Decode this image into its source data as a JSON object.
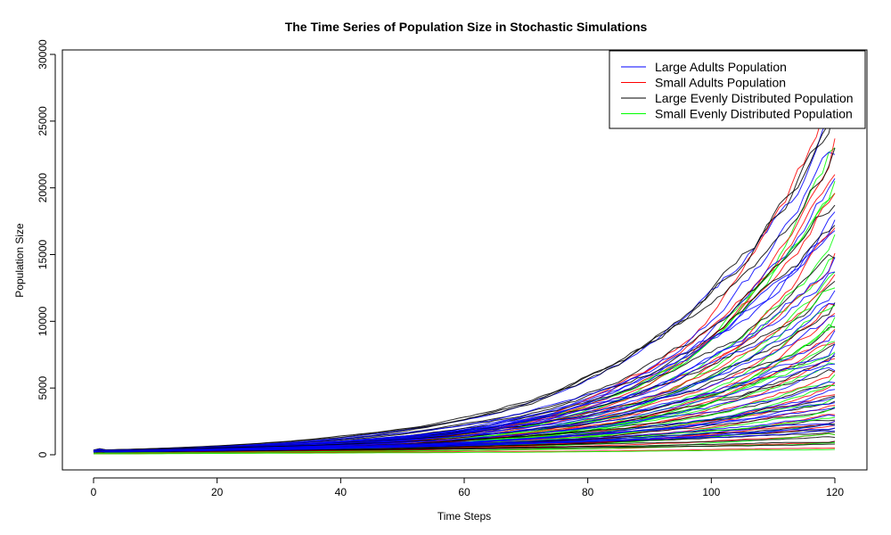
{
  "chart_data": {
    "type": "line",
    "title": "The Time Series of Population Size in Stochastic Simulations",
    "xlabel": "Time Steps",
    "ylabel": "Population Size",
    "xlim": [
      0,
      120
    ],
    "ylim": [
      0,
      30000
    ],
    "x_ticks": [
      0,
      20,
      40,
      60,
      80,
      100,
      120
    ],
    "y_ticks": [
      0,
      5000,
      10000,
      15000,
      20000,
      25000,
      30000
    ],
    "grid": false,
    "legend_position": "top-right",
    "legend": [
      {
        "label": "Large Adults Population",
        "color": "#0000ff"
      },
      {
        "label": "Small Adults Population",
        "color": "#ff0000"
      },
      {
        "label": "Large Evenly Distributed Population",
        "color": "#000000"
      },
      {
        "label": "Small Evenly Distributed Population",
        "color": "#00ff00"
      }
    ],
    "series_groups": [
      {
        "name": "Large Adults Population",
        "color": "#0000ff",
        "start": 250,
        "end_values": [
          25000,
          22500,
          20700,
          18200,
          17600,
          16800,
          14800,
          13700,
          12300,
          11300,
          10400,
          9300,
          8300,
          7600,
          6800,
          6300,
          5400,
          4900,
          4300,
          3900,
          3500,
          2900,
          2500,
          2200,
          2000,
          1800
        ]
      },
      {
        "name": "Small Adults Population",
        "color": "#ff0000",
        "start": 100,
        "end_values": [
          27000,
          23700,
          21000,
          19600,
          17000,
          15100,
          13500,
          11200,
          10600,
          9400,
          8400,
          7200,
          6300,
          5400,
          4500,
          3700,
          3000,
          2500,
          2200,
          1500,
          1000,
          500
        ]
      },
      {
        "name": "Large Evenly Distributed Population",
        "color": "#000000",
        "start": 250,
        "end_values": [
          26000,
          25200,
          23000,
          18700,
          17200,
          14700,
          13000,
          11400,
          9600,
          8300,
          7400,
          6200,
          5200,
          4400,
          4000,
          3500,
          2600,
          2300,
          2000,
          1700,
          1300,
          1000,
          800
        ]
      },
      {
        "name": "Small Evenly Distributed Population",
        "color": "#00ff00",
        "start": 100,
        "end_values": [
          23000,
          20500,
          19600,
          16500,
          14800,
          13700,
          12500,
          11200,
          10300,
          9500,
          8500,
          7700,
          6800,
          6000,
          5200,
          4300,
          3600,
          2800,
          2200,
          1500,
          900,
          400
        ]
      }
    ]
  }
}
